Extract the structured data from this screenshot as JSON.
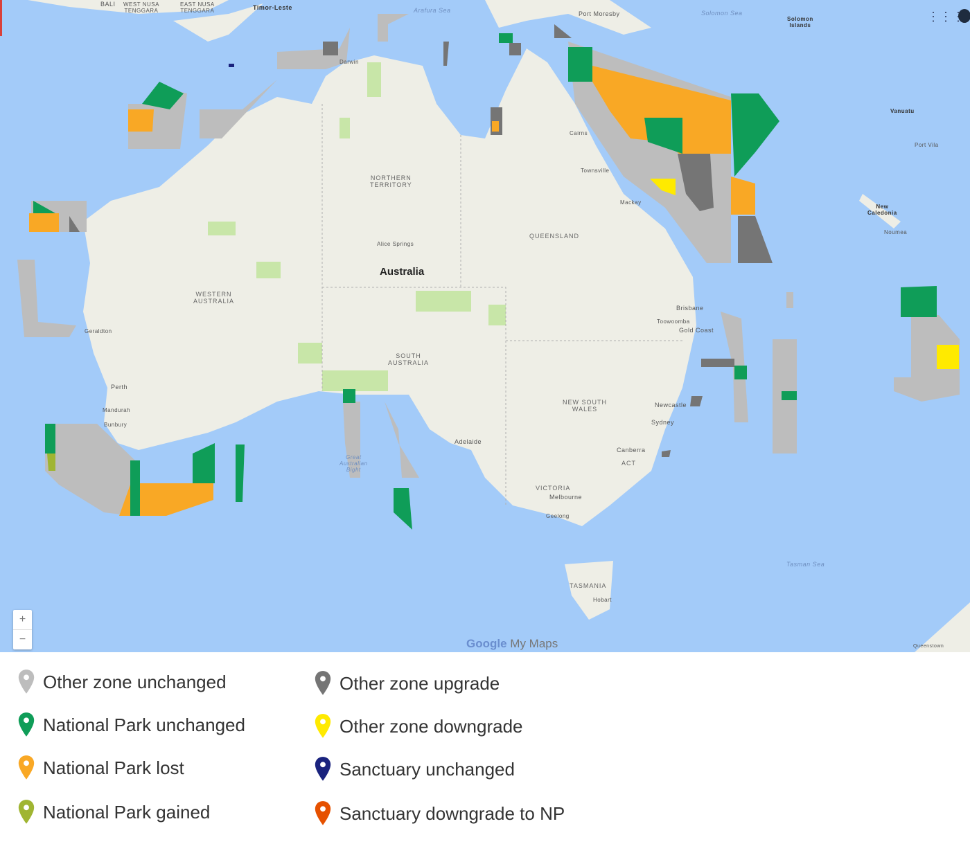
{
  "map": {
    "colors": {
      "ocean": "#a3cbf9",
      "land": "#eeeee6",
      "park": "#c8e6a8"
    },
    "labels": {
      "bali": "BALI",
      "west_nusa": "WEST NUSA\nTENGGARA",
      "east_nusa": "EAST NUSA\nTENGGARA",
      "timor": "Timor-Leste",
      "arafura": "Arafura Sea",
      "port_moresby": "Port Moresby",
      "solomon_sea": "Solomon Sea",
      "solomon_islands": "Solomon\nIslands",
      "vanuatu": "Vanuatu",
      "port_vila": "Port Vila",
      "new_caledonia": "New\nCaledonia",
      "noumea": "Noumea",
      "darwin": "Darwin",
      "cairns": "Cairns",
      "townsville": "Townsville",
      "mackay": "Mackay",
      "nt": "NORTHERN\nTERRITORY",
      "qld": "QUEENSLAND",
      "wa": "WESTERN\nAUSTRALIA",
      "sa": "SOUTH\nAUSTRALIA",
      "nsw": "NEW SOUTH\nWALES",
      "vic": "VICTORIA",
      "act": "ACT",
      "australia": "Australia",
      "alice": "Alice Springs",
      "brisbane": "Brisbane",
      "toowoomba": "Toowoomba",
      "gold_coast": "Gold Coast",
      "geraldton": "Geraldton",
      "perth": "Perth",
      "mandurah": "Mandurah",
      "bunbury": "Bunbury",
      "adelaide": "Adelaide",
      "newcastle": "Newcastle",
      "sydney": "Sydney",
      "canberra": "Canberra",
      "melbourne": "Melbourne",
      "geelong": "Geelong",
      "bight": "Great\nAustralian\nBight",
      "tasmania": "TASMANIA",
      "hobart": "Hobart",
      "tasman": "Tasman Sea",
      "queenstown": "Queenstown"
    },
    "controls": {
      "zoom_in": "+",
      "zoom_out": "−"
    },
    "attribution": {
      "google": "Google",
      "product": "My Maps"
    },
    "icons": {
      "apps": "apps-grid-icon",
      "account": "account-icon"
    }
  },
  "legend": [
    {
      "label": "Other zone unchanged",
      "color": "#bdbdbd"
    },
    {
      "label": "National Park unchanged",
      "color": "#0f9d58"
    },
    {
      "label": "National Park lost",
      "color": "#f9a825"
    },
    {
      "label": "National Park gained",
      "color": "#a0b532"
    },
    {
      "label": "Other zone upgrade",
      "color": "#757575"
    },
    {
      "label": "Other zone downgrade",
      "color": "#ffea00"
    },
    {
      "label": "Sanctuary unchanged",
      "color": "#1a237e"
    },
    {
      "label": "Sanctuary downgrade to NP",
      "color": "#e65100"
    }
  ]
}
